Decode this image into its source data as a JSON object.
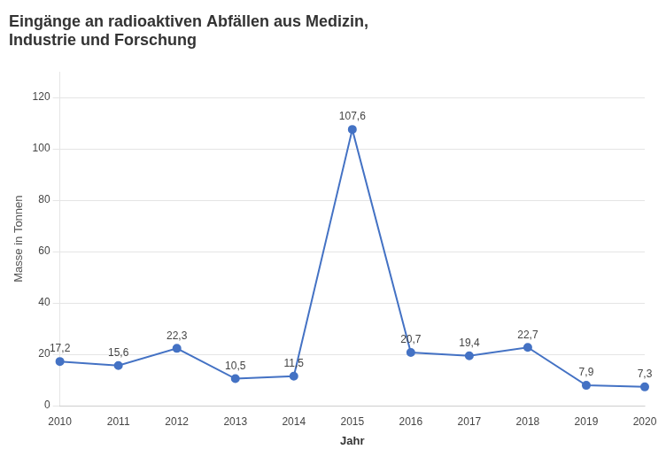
{
  "chart_data": {
    "type": "line",
    "title": "Eingänge an radioaktiven Abfällen aus Medizin,\nIndustrie und Forschung",
    "xlabel": "Jahr",
    "ylabel": "Masse in Tonnen",
    "categories": [
      "2010",
      "2011",
      "2012",
      "2013",
      "2014",
      "2015",
      "2016",
      "2017",
      "2018",
      "2019",
      "2020"
    ],
    "values": [
      17.2,
      15.6,
      22.3,
      10.5,
      11.5,
      107.6,
      20.7,
      19.4,
      22.7,
      7.9,
      7.3
    ],
    "value_labels": [
      "17,2",
      "15,6",
      "22,3",
      "10,5",
      "11,5",
      "107,6",
      "20,7",
      "19,4",
      "22,7",
      "7,9",
      "7,3"
    ],
    "color": "#4472C4",
    "marker": "circle",
    "ylim": [
      0,
      130
    ],
    "yticks": [
      0,
      20,
      40,
      60,
      80,
      100,
      120
    ],
    "grid": true,
    "data_labels": true
  }
}
